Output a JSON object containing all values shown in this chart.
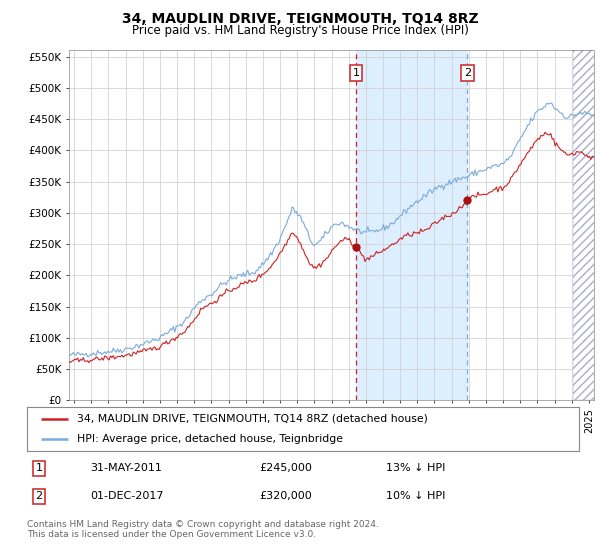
{
  "title": "34, MAUDLIN DRIVE, TEIGNMOUTH, TQ14 8RZ",
  "subtitle": "Price paid vs. HM Land Registry's House Price Index (HPI)",
  "legend_line1": "34, MAUDLIN DRIVE, TEIGNMOUTH, TQ14 8RZ (detached house)",
  "legend_line2": "HPI: Average price, detached house, Teignbridge",
  "annotation1_date": "31-MAY-2011",
  "annotation1_price": "£245,000",
  "annotation1_hpi": "13% ↓ HPI",
  "annotation2_date": "01-DEC-2017",
  "annotation2_price": "£320,000",
  "annotation2_hpi": "10% ↓ HPI",
  "footer": "Contains HM Land Registry data © Crown copyright and database right 2024.\nThis data is licensed under the Open Government Licence v3.0.",
  "hpi_color": "#7aabdc",
  "price_color": "#cc2222",
  "marker_color": "#aa1111",
  "vline1_color": "#cc2222",
  "vline2_color": "#7aabdc",
  "shade_color": "#ddeeff",
  "grid_color": "#cccccc",
  "bg_color": "#ffffff",
  "ylim": [
    0,
    560000
  ],
  "yticks": [
    0,
    50000,
    100000,
    150000,
    200000,
    250000,
    300000,
    350000,
    400000,
    450000,
    500000,
    550000
  ],
  "xlim_start": 1994.7,
  "xlim_end": 2025.3,
  "vline1_x": 2011.42,
  "vline2_x": 2017.92,
  "sale1_y": 245000,
  "sale2_y": 320000,
  "hatch_start": 2024.08
}
